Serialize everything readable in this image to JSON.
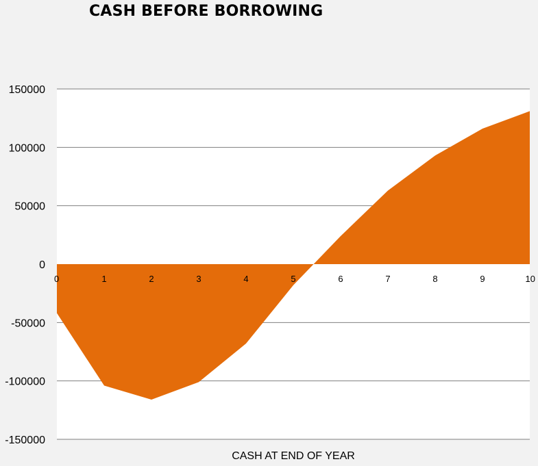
{
  "chart_data": {
    "type": "area",
    "title": "CASH BEFORE BORROWING",
    "xlabel": "CASH AT END OF YEAR",
    "ylabel": "",
    "x": [
      0,
      1,
      2,
      3,
      4,
      5,
      6,
      7,
      8,
      9,
      10
    ],
    "x_tick_labels": [
      "0",
      "1",
      "2",
      "3",
      "4",
      "5",
      "6",
      "7",
      "8",
      "9",
      "10"
    ],
    "series": [
      {
        "values": [
          -42000,
          -104000,
          -116000,
          -101000,
          -68000,
          -18000,
          24000,
          63000,
          93000,
          116000,
          131000
        ],
        "color": "#e46c0a"
      }
    ],
    "ylim": [
      -150000,
      150000
    ],
    "y_ticks": [
      150000,
      100000,
      50000,
      0,
      -50000,
      -100000,
      -150000
    ],
    "y_tick_labels": [
      "150000",
      "100000",
      "50000",
      "0",
      "-50000",
      "-100000",
      "-150000"
    ],
    "grid": true,
    "legend": "none",
    "colors": {
      "background": "#f2f2f2",
      "plot_area": "#ffffff",
      "gridline": "#7f7f7f",
      "area_fill": "#e46c0a"
    }
  }
}
